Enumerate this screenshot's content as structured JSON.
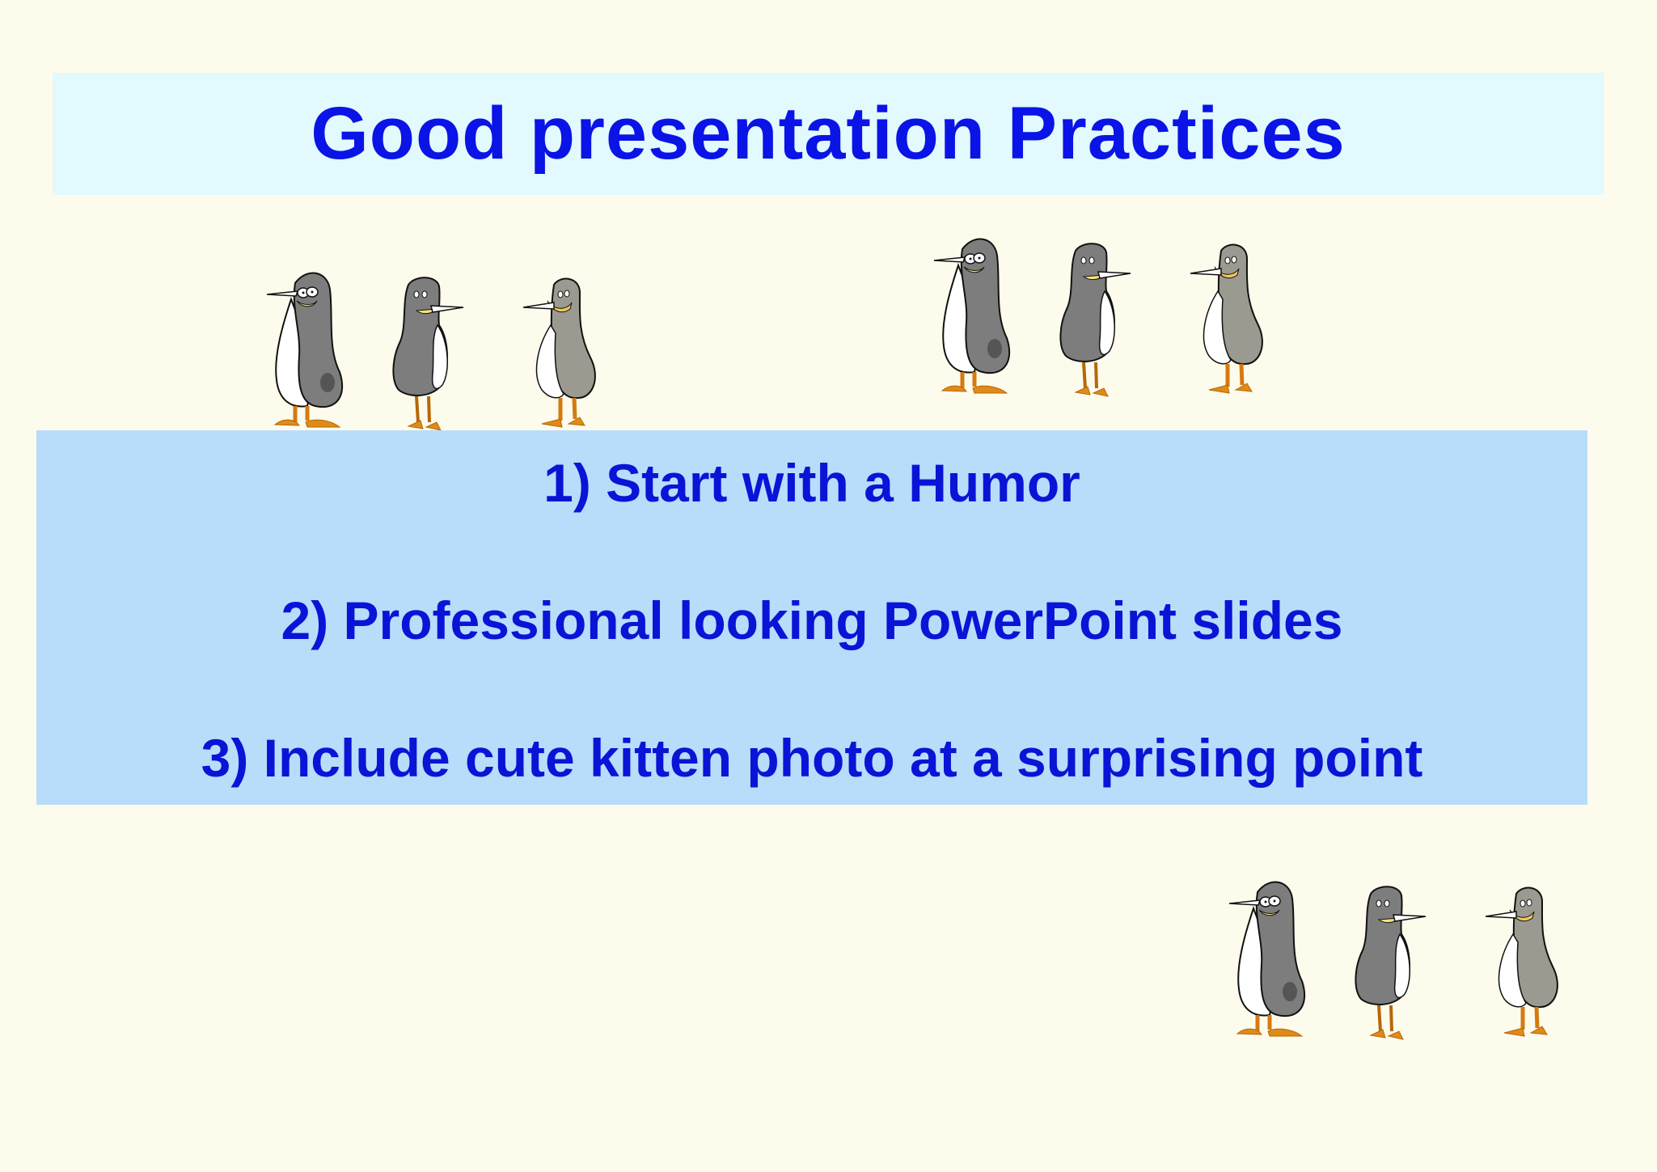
{
  "slide": {
    "title": "Good presentation Practices",
    "points": [
      "1) Start with a Humor",
      "2) Professional looking PowerPoint slides",
      "3) Include cute kitten photo at a surprising point"
    ]
  },
  "illustrations": {
    "penguin_groups": [
      {
        "name": "penguin-group-top-left",
        "count": 3
      },
      {
        "name": "penguin-group-top-right",
        "count": 3
      },
      {
        "name": "penguin-group-bottom-right",
        "count": 3
      }
    ]
  },
  "colors": {
    "background": "#fdfbec",
    "title_bar": "#e2f9fd",
    "content_box": "#b9dcfb",
    "text": "#0a14e6"
  }
}
